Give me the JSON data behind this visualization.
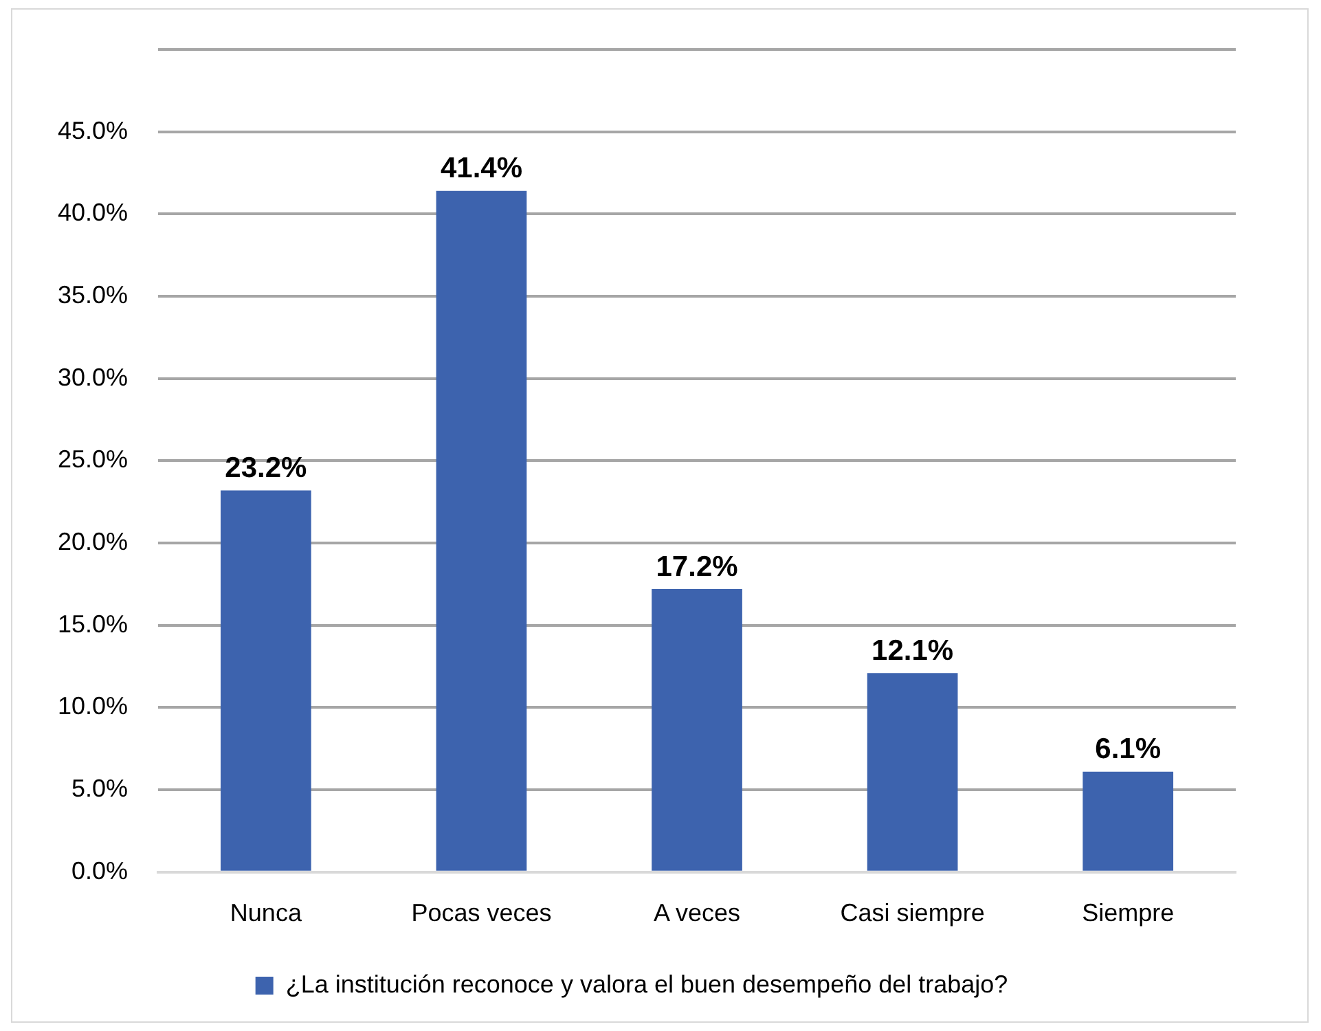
{
  "chart_data": {
    "type": "bar",
    "categories": [
      "Nunca",
      "Pocas veces",
      "A veces",
      "Casi siempre",
      "Siempre"
    ],
    "series": [
      {
        "name": "¿La institución reconoce y valora el buen desempeño del trabajo?",
        "color": "#3d63ae",
        "values": [
          23.2,
          41.4,
          17.2,
          12.1,
          6.1
        ],
        "value_labels": [
          "23.2%",
          "41.4%",
          "17.2%",
          "12.1%",
          "6.1%"
        ]
      }
    ],
    "ylim": [
      0,
      50
    ],
    "yticks": [
      {
        "value": 0,
        "label": "0.0%"
      },
      {
        "value": 5,
        "label": "5.0%"
      },
      {
        "value": 10,
        "label": "10.0%"
      },
      {
        "value": 15,
        "label": "15.0%"
      },
      {
        "value": 20,
        "label": "20.0%"
      },
      {
        "value": 25,
        "label": "25.0%"
      },
      {
        "value": 30,
        "label": "30.0%"
      },
      {
        "value": 35,
        "label": "35.0%"
      },
      {
        "value": 40,
        "label": "40.0%"
      },
      {
        "value": 45,
        "label": "45.0%"
      },
      {
        "value": 50,
        "label": null
      }
    ],
    "grid": "y",
    "legend": "bottom"
  }
}
